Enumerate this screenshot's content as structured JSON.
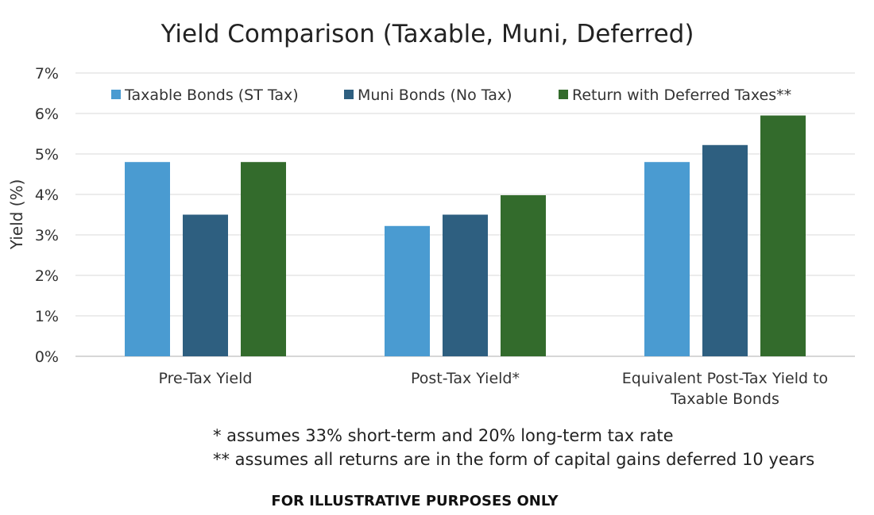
{
  "chart_data": {
    "type": "bar",
    "title": "Yield Comparison (Taxable, Muni, Deferred)",
    "ylabel": "Yield (%)",
    "xlabel": "",
    "ylim": [
      0,
      7
    ],
    "y_ticks": [
      "0%",
      "1%",
      "2%",
      "3%",
      "4%",
      "5%",
      "6%",
      "7%"
    ],
    "categories": [
      [
        "Pre-Tax Yield"
      ],
      [
        "Post-Tax Yield*"
      ],
      [
        "Equivalent Post-Tax Yield to",
        "Taxable Bonds"
      ]
    ],
    "series": [
      {
        "name": "Taxable Bonds (ST Tax)",
        "color": "#4a9bd1",
        "values": [
          4.8,
          3.22,
          4.8
        ]
      },
      {
        "name": "Muni Bonds (No Tax)",
        "color": "#2e5f80",
        "values": [
          3.5,
          3.5,
          5.22
        ]
      },
      {
        "name": "Return with Deferred Taxes**",
        "color": "#336b2c",
        "values": [
          4.8,
          3.98,
          5.95
        ]
      }
    ],
    "grid": true,
    "legend_position": "top"
  },
  "notes": {
    "line1": "* assumes 33% short-term and 20% long-term tax rate",
    "line2": "** assumes all returns are in the form of capital gains deferred 10 years"
  },
  "disclaimer": "FOR ILLUSTRATIVE PURPOSES ONLY"
}
